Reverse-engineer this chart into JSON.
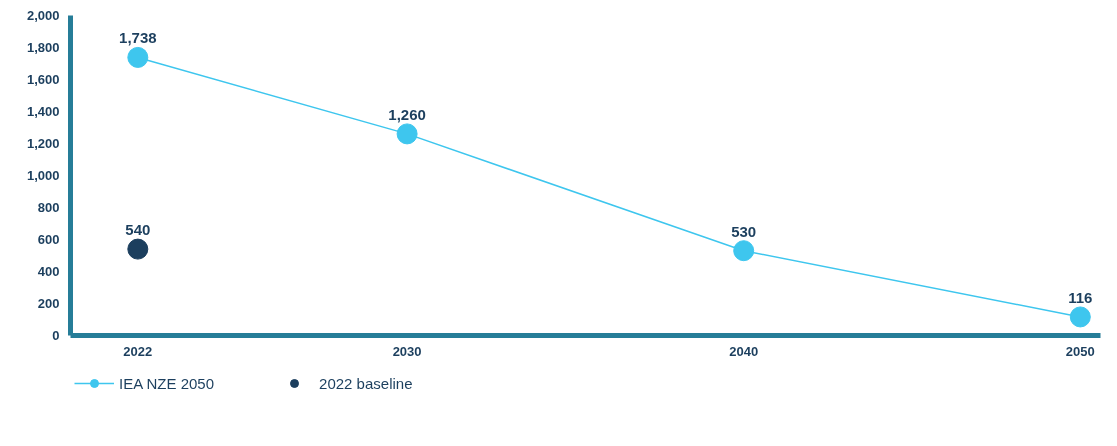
{
  "chart_data": {
    "type": "line",
    "x": [
      2022,
      2030,
      2040,
      2050
    ],
    "xlim": [
      2020,
      2050.6
    ],
    "xticks": [
      2022,
      2030,
      2040,
      2050
    ],
    "ylim": [
      0,
      2000
    ],
    "yticks": [
      {
        "value": 0,
        "label": "0"
      },
      {
        "value": 200,
        "label": "200"
      },
      {
        "value": 400,
        "label": "400"
      },
      {
        "value": 600,
        "label": "600"
      },
      {
        "value": 800,
        "label": "800"
      },
      {
        "value": 1000,
        "label": "1,000"
      },
      {
        "value": 1200,
        "label": "1,200"
      },
      {
        "value": 1400,
        "label": "1,400"
      },
      {
        "value": 1600,
        "label": "1,600"
      },
      {
        "value": 1800,
        "label": "1,800"
      },
      {
        "value": 2000,
        "label": "2,000"
      }
    ],
    "series": [
      {
        "name": "IEA NZE 2050",
        "color": "#3ec6ee",
        "values": [
          1738,
          1260,
          530,
          116
        ],
        "value_labels": [
          "1,738",
          "1,260",
          "530",
          "116"
        ]
      },
      {
        "name": "2022 baseline",
        "type": "scatter",
        "color": "#1c3f5e",
        "x": [
          2022
        ],
        "values": [
          540
        ],
        "value_labels": [
          "540"
        ]
      }
    ],
    "marker": "circle",
    "line_style": "solid",
    "grid": false,
    "legend": "bottom left"
  }
}
